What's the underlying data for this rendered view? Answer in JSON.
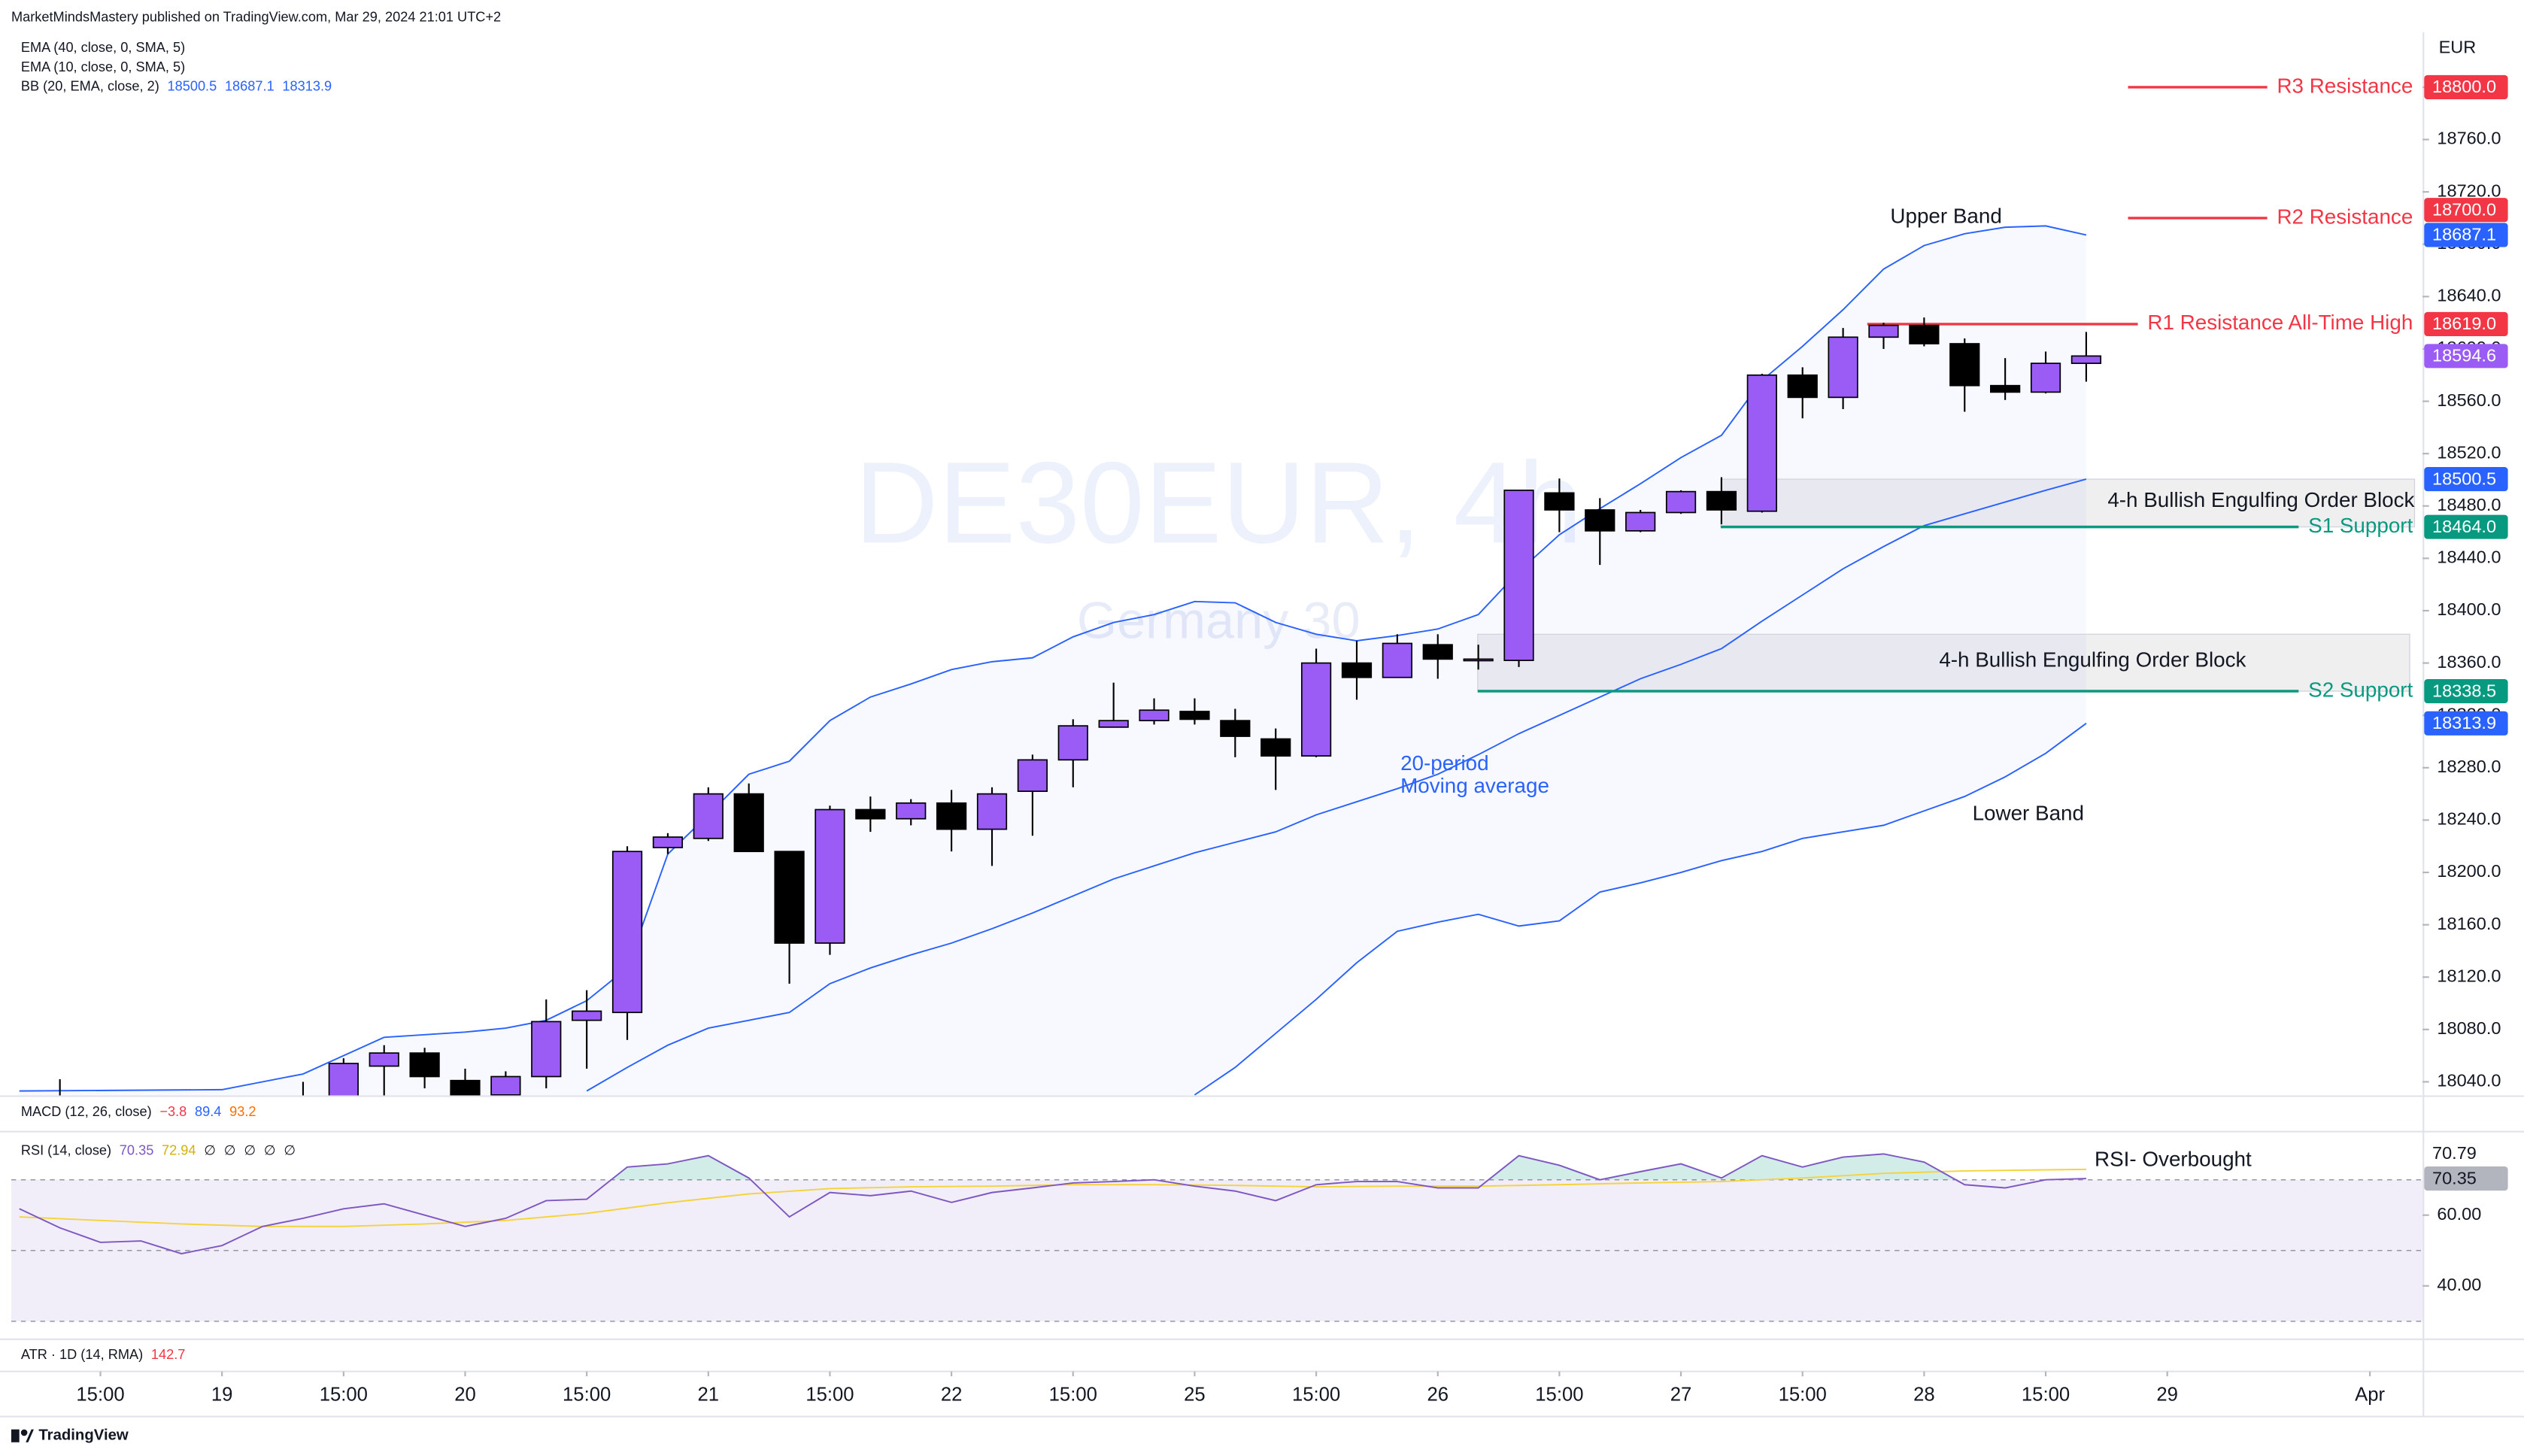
{
  "published": "MarketMindsMastery published on TradingView.com, Mar 29, 2024 21:01 UTC+2",
  "footer": "TradingView",
  "chart_data": {
    "type": "candlestick",
    "currency": "EUR",
    "watermark": "DE30EUR, 4h",
    "watermark_subtitle": "Germany 30",
    "indicators": [
      {
        "name": "EMA (40, close, 0, SMA, 5)",
        "values": [],
        "colors": []
      },
      {
        "name": "EMA (10, close, 0, SMA, 5)",
        "values": [],
        "colors": []
      },
      {
        "name": "BB (20, EMA, close, 2)",
        "values": [
          "18500.5",
          "18687.1",
          "18313.9"
        ],
        "colors": [
          "#2962ff",
          "#2962ff",
          "#2962ff"
        ]
      },
      {
        "name": "MACD (12, 26, close)",
        "values": [
          "−3.8",
          "89.4",
          "93.2"
        ],
        "colors": [
          "#f23645",
          "#2962ff",
          "#ff6d00"
        ]
      },
      {
        "name": "RSI (14, close)",
        "values": [
          "70.35",
          "72.94",
          "∅",
          "∅",
          "∅",
          "∅",
          "∅"
        ],
        "colors": [
          "#7e57c2",
          "#d4b106",
          "#131722",
          "#131722",
          "#131722",
          "#131722",
          "#131722"
        ]
      },
      {
        "name": "ATR · 1D (14, RMA)",
        "values": [
          "142.7"
        ],
        "colors": [
          "#f23645"
        ]
      }
    ],
    "up_color": "#9b5cf6",
    "down_color": "#000000",
    "xlim": [
      -2.2,
      57.3
    ],
    "xticks": [
      {
        "value": 0,
        "label": "15:00"
      },
      {
        "value": 3,
        "label": "19"
      },
      {
        "value": 6,
        "label": "15:00"
      },
      {
        "value": 9,
        "label": "20"
      },
      {
        "value": 12,
        "label": "15:00"
      },
      {
        "value": 15,
        "label": "21"
      },
      {
        "value": 18,
        "label": "15:00"
      },
      {
        "value": 21,
        "label": "22"
      },
      {
        "value": 24,
        "label": "15:00"
      },
      {
        "value": 27,
        "label": "25"
      },
      {
        "value": 30,
        "label": "15:00"
      },
      {
        "value": 33,
        "label": "26"
      },
      {
        "value": 36,
        "label": "15:00"
      },
      {
        "value": 39,
        "label": "27"
      },
      {
        "value": 42,
        "label": "15:00"
      },
      {
        "value": 45,
        "label": "28"
      },
      {
        "value": 48,
        "label": "15:00"
      },
      {
        "value": 51,
        "label": "29"
      },
      {
        "value": 56,
        "label": "Apr"
      }
    ],
    "ylim": [
      18029,
      18842
    ],
    "yticks": [
      {
        "value": 18040,
        "label": "18040.0"
      },
      {
        "value": 18080,
        "label": "18080.0"
      },
      {
        "value": 18120,
        "label": "18120.0"
      },
      {
        "value": 18160,
        "label": "18160.0"
      },
      {
        "value": 18200,
        "label": "18200.0"
      },
      {
        "value": 18240,
        "label": "18240.0"
      },
      {
        "value": 18280,
        "label": "18280.0"
      },
      {
        "value": 18320,
        "label": "18320.0"
      },
      {
        "value": 18360,
        "label": "18360.0"
      },
      {
        "value": 18400,
        "label": "18400.0"
      },
      {
        "value": 18440,
        "label": "18440.0"
      },
      {
        "value": 18480,
        "label": "18480.0"
      },
      {
        "value": 18520,
        "label": "18520.0"
      },
      {
        "value": 18560,
        "label": "18560.0"
      },
      {
        "value": 18600,
        "label": "18600.0"
      },
      {
        "value": 18640,
        "label": "18640.0"
      },
      {
        "value": 18680,
        "label": "18680.0"
      },
      {
        "value": 18720,
        "label": "18720.0"
      },
      {
        "value": 18760,
        "label": "18760.0"
      },
      {
        "value": 18800,
        "label": "18800.0"
      }
    ],
    "x": [
      -1,
      5,
      6,
      7,
      8,
      9,
      10,
      11,
      12,
      13,
      14,
      15,
      16,
      17,
      18,
      19,
      20,
      21,
      22,
      23,
      24,
      25,
      26,
      27,
      28,
      29,
      30,
      31,
      32,
      33,
      34,
      35,
      36,
      37,
      38,
      39,
      40,
      41,
      42,
      43,
      44,
      45,
      46,
      47,
      48,
      49
    ],
    "open": [
      18010,
      18000,
      18015,
      18052,
      18062,
      18041,
      18030,
      18044,
      18087,
      18093,
      18219,
      18226,
      18260,
      18216,
      18146,
      18248,
      18241,
      18253,
      18233,
      18262,
      18286,
      18311,
      18316,
      18323,
      18316,
      18302,
      18289,
      18360,
      18349,
      18374,
      18363,
      18362,
      18490,
      18477,
      18461,
      18475,
      18491,
      18476,
      18580,
      18563,
      18609,
      18618,
      18604,
      18572,
      18567,
      18589
    ],
    "high": [
      18042,
      18040,
      18058,
      18068,
      18066,
      18050,
      18048,
      18103,
      18110,
      18220,
      18230,
      18265,
      18268,
      18216,
      18251,
      18258,
      18256,
      18263,
      18265,
      18290,
      18317,
      18345,
      18333,
      18333,
      18325,
      18310,
      18371,
      18377,
      18382,
      18382,
      18374,
      18492,
      18501,
      18486,
      18477,
      18492,
      18502,
      18581,
      18586,
      18616,
      18620,
      18624,
      18608,
      18593,
      18598,
      18613
    ],
    "low": [
      17990,
      17990,
      18000,
      18020,
      18035,
      18010,
      18010,
      18035,
      18050,
      18072,
      18214,
      18224,
      18216,
      18115,
      18137,
      18231,
      18236,
      18216,
      18205,
      18228,
      18265,
      18311,
      18313,
      18313,
      18288,
      18263,
      18288,
      18332,
      18349,
      18348,
      18355,
      18357,
      18460,
      18435,
      18460,
      18474,
      18466,
      18475,
      18547,
      18554,
      18600,
      18602,
      18552,
      18561,
      18566,
      18575
    ],
    "close": [
      18020,
      18020,
      18054,
      18062,
      18044,
      18029,
      18044,
      18086,
      18094,
      18216,
      18227,
      18260,
      18216,
      18146,
      18248,
      18241,
      18253,
      18233,
      18260,
      18286,
      18312,
      18316,
      18324,
      18317,
      18304,
      18289,
      18360,
      18349,
      18375,
      18363,
      18363,
      18492,
      18477,
      18461,
      18475,
      18491,
      18477,
      18580,
      18563,
      18609,
      18618,
      18604,
      18572,
      18567,
      18589,
      18594.6
    ],
    "series": [
      {
        "color": "#2962ff",
        "x": [
          -2,
          3,
          5,
          6,
          7,
          8,
          9,
          10,
          11,
          12,
          13,
          14,
          15,
          16,
          17,
          18,
          19,
          20,
          21,
          22,
          23,
          24,
          25,
          26,
          27,
          28,
          29,
          30,
          31,
          32,
          33,
          34,
          35,
          36,
          37,
          38,
          39,
          40,
          41,
          42,
          43,
          44,
          45,
          46,
          47,
          48,
          49
        ],
        "values": [
          18033,
          18034,
          18046,
          18060,
          18074,
          18076,
          18078,
          18081,
          18087,
          18102,
          18127,
          18214,
          18244,
          18275,
          18285,
          18316,
          18334,
          18344,
          18355,
          18361,
          18364,
          18380,
          18391,
          18397,
          18407,
          18406,
          18391,
          18382,
          18377,
          18381,
          18386,
          18397,
          18430,
          18458,
          18478,
          18497,
          18517,
          18534,
          18576,
          18602,
          18630,
          18661,
          18679,
          18688,
          18693,
          18694,
          18687.1
        ]
      },
      {
        "color": "#2962ff",
        "x": [
          12,
          13,
          14,
          15,
          16,
          17,
          18,
          19,
          20,
          21,
          22,
          23,
          24,
          25,
          26,
          27,
          28,
          29,
          30,
          31,
          32,
          33,
          34,
          35,
          36,
          37,
          38,
          39,
          40,
          41,
          42,
          43,
          44,
          45,
          46,
          47,
          48,
          49
        ],
        "values": [
          18033,
          18051,
          18068,
          18081,
          18087,
          18093,
          18115,
          18127,
          18137,
          18146,
          18157,
          18169,
          18182,
          18195,
          18205,
          18215,
          18223,
          18231,
          18244,
          18254,
          18264,
          18275,
          18290,
          18306,
          18320,
          18334,
          18348,
          18359,
          18371,
          18392,
          18412,
          18432,
          18449,
          18465,
          18474,
          18483,
          18492,
          18500.5
        ]
      },
      {
        "color": "#2962ff",
        "x": [
          27,
          28,
          29,
          30,
          31,
          32,
          33,
          34,
          35,
          36,
          37,
          38,
          39,
          40,
          41,
          42,
          43,
          44,
          45,
          46,
          47,
          48,
          49
        ],
        "values": [
          18030,
          18051,
          18077,
          18103,
          18131,
          18155,
          18162,
          18168,
          18159,
          18163,
          18185,
          18192,
          18200,
          18209,
          18216,
          18226,
          18231,
          18236,
          18247,
          18258,
          18273,
          18291,
          18313.9
        ]
      }
    ],
    "levels": [
      {
        "label": "R3 Resistance",
        "value": 18800,
        "color": "#f23645"
      },
      {
        "label": "R2 Resistance",
        "value": 18700,
        "color": "#f23645"
      },
      {
        "label": "R1 Resistance All-Time High",
        "value": 18619,
        "color": "#f23645"
      },
      {
        "label": "S1 Support",
        "value": 18464,
        "color": "#089981"
      },
      {
        "label": "S2 Support",
        "value": 18338.5,
        "color": "#089981"
      }
    ],
    "order_blocks": [
      {
        "label": "4-h Bullish Engulfing Order Block",
        "top": 18500.5,
        "bottom": 18464
      },
      {
        "label": "4-h Bullish Engulfing Order Block",
        "top": 18382,
        "bottom": 18338.5
      }
    ],
    "annotations": [
      {
        "text": "Upper Band",
        "color": "#131722"
      },
      {
        "text": "Lower Band",
        "color": "#131722"
      },
      {
        "text": "20-period",
        "color": "#2962ff"
      },
      {
        "text": "Moving average",
        "color": "#2962ff"
      }
    ],
    "price_tags": [
      {
        "value": 18800,
        "label": "18800.0",
        "color": "#f23645"
      },
      {
        "value": 18700,
        "label": "18700.0",
        "color": "#f23645"
      },
      {
        "value": 18687.1,
        "label": "18687.1",
        "color": "#2962ff"
      },
      {
        "value": 18619,
        "label": "18619.0",
        "color": "#f23645"
      },
      {
        "value": 18594.6,
        "label": "18594.6",
        "color": "#9b5cf6"
      },
      {
        "value": 18500.5,
        "label": "18500.5",
        "color": "#2962ff"
      },
      {
        "value": 18464,
        "label": "18464.0",
        "color": "#089981"
      },
      {
        "value": 18338.5,
        "label": "18338.5",
        "color": "#089981"
      },
      {
        "value": 18313.9,
        "label": "18313.9",
        "color": "#2962ff"
      }
    ],
    "rsi": {
      "color": "#7e57c2",
      "ma_color": "#f5d33b",
      "ylim": [
        29,
        82.7
      ],
      "yticks": [
        {
          "value": 40,
          "label": "40.00"
        },
        {
          "value": 60,
          "label": "60.00"
        }
      ],
      "levels": [
        70,
        50,
        30
      ],
      "annotation": "RSI- Overbought",
      "x": [
        -2,
        -1,
        0,
        1,
        2,
        3,
        4,
        5,
        6,
        7,
        8,
        9,
        10,
        11,
        12,
        13,
        14,
        15,
        16,
        17,
        18,
        19,
        20,
        21,
        22,
        23,
        24,
        25,
        26,
        27,
        28,
        29,
        30,
        31,
        32,
        33,
        34,
        35,
        36,
        37,
        38,
        39,
        40,
        41,
        42,
        43,
        44,
        45,
        46,
        47,
        48,
        49
      ],
      "values": [
        61.8,
        56.4,
        52.3,
        52.7,
        49.1,
        51.4,
        56.8,
        59.1,
        61.8,
        63.2,
        60,
        56.8,
        59.1,
        64.1,
        64.5,
        73.6,
        74.5,
        76.8,
        70.5,
        59.5,
        66.4,
        65.5,
        66.8,
        63.6,
        66.4,
        67.7,
        69.1,
        69.5,
        70,
        68.2,
        66.8,
        64.1,
        68.6,
        69.5,
        69.5,
        67.7,
        67.7,
        76.8,
        74.1,
        70,
        72.3,
        74.5,
        70.5,
        76.8,
        73.6,
        76.4,
        77.3,
        75,
        68.6,
        67.7,
        70,
        70.35
      ],
      "ma_x": [
        -2,
        0,
        2,
        4,
        6,
        8,
        10,
        12,
        14,
        16,
        18,
        20,
        22,
        24,
        26,
        28,
        30,
        32,
        34,
        36,
        38,
        40,
        42,
        44,
        46,
        48,
        49
      ],
      "ma_values": [
        59.5,
        58.5,
        57.5,
        56.8,
        56.8,
        57.5,
        58.5,
        60.5,
        63.5,
        66,
        67.5,
        68,
        68.2,
        68.6,
        68.6,
        68.4,
        68,
        68.2,
        68.2,
        68.6,
        69.1,
        69.5,
        70.5,
        71.8,
        72.5,
        72.8,
        72.94
      ],
      "tags": [
        {
          "value": 70.79,
          "label": "70.79",
          "color": "#ffffff",
          "text_color": "#131722"
        },
        {
          "value": 70.35,
          "label": "70.35",
          "color": "#b2b5be",
          "text_color": "#131722"
        }
      ]
    }
  }
}
